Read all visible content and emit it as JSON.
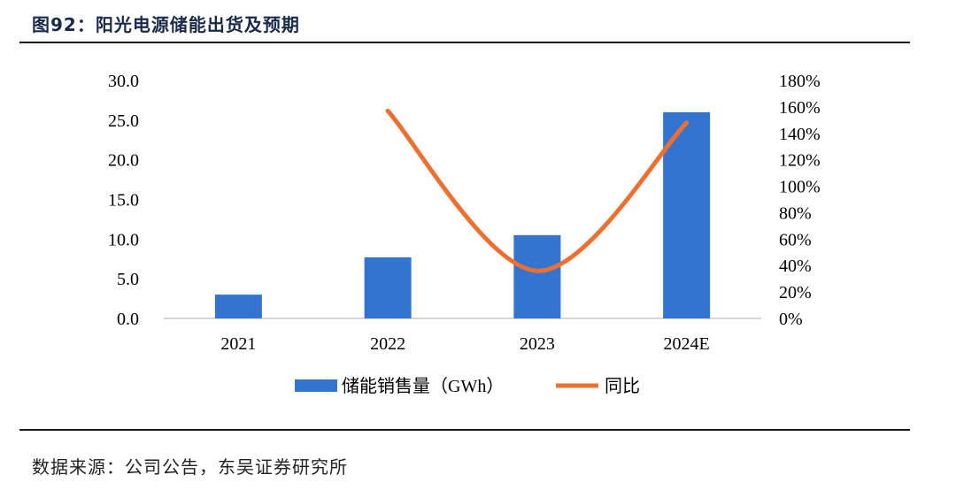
{
  "figure": {
    "title": "图92：阳光电源储能出货及预期",
    "source": "数据来源：公司公告，东吴证券研究所"
  },
  "colors": {
    "bar": "#3374d0",
    "line": "#ee7030",
    "axis": "#c8c8c8",
    "text": "#000000"
  },
  "chart_data": {
    "type": "bar",
    "categories": [
      "2021",
      "2022",
      "2023",
      "2024E"
    ],
    "series": [
      {
        "name": "储能销售量（GWh）",
        "type": "bar",
        "axis": "left",
        "values": [
          3.0,
          7.7,
          10.5,
          26.0
        ]
      },
      {
        "name": "同比",
        "type": "line",
        "axis": "right",
        "values": [
          null,
          1.57,
          0.36,
          1.48
        ]
      }
    ],
    "y_left": {
      "min": 0,
      "max": 30,
      "ticks": [
        "0.0",
        "5.0",
        "10.0",
        "15.0",
        "20.0",
        "25.0",
        "30.0"
      ]
    },
    "y_right": {
      "min": 0,
      "max": 1.8,
      "ticks": [
        "0%",
        "20%",
        "40%",
        "60%",
        "80%",
        "100%",
        "120%",
        "140%",
        "160%",
        "180%"
      ]
    },
    "legend_position": "bottom",
    "grid": false
  }
}
